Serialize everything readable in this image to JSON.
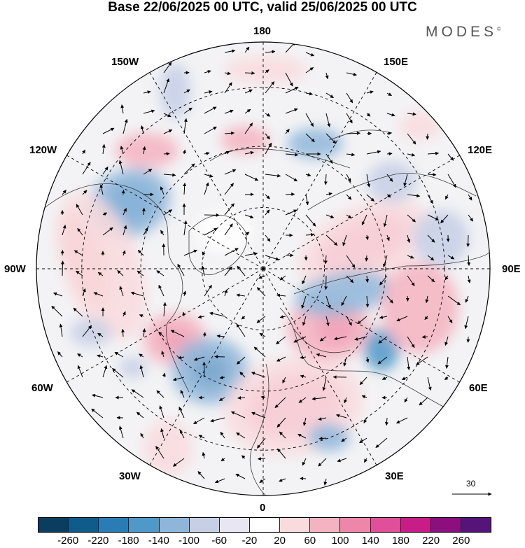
{
  "title": "Base 22/06/2025 00 UTC, valid 25/06/2025 00 UTC",
  "brand": "MODES",
  "brand_mark": "©",
  "longitude_labels": {
    "top": "180",
    "bottom": "0",
    "left": "90W",
    "right": "90E",
    "upper_left_1": "150W",
    "upper_left_2": "120W",
    "upper_right_1": "150E",
    "upper_right_2": "120E",
    "lower_left_1": "60W",
    "lower_left_2": "30W",
    "lower_right_1": "60E",
    "lower_right_2": "30E"
  },
  "reference_vector_label": "30",
  "colorbar": {
    "colors": [
      "#0b3e5e",
      "#0f5b8a",
      "#2a7cb4",
      "#4f98c8",
      "#8fb6da",
      "#c6cfe6",
      "#e7e6f2",
      "#ffffff",
      "#f9dadd",
      "#f4b3c0",
      "#ee86aa",
      "#e0509a",
      "#c81c87",
      "#8c0f80",
      "#56147b"
    ],
    "labels": [
      "-260",
      "-220",
      "-180",
      "-140",
      "-100",
      "-60",
      "-20",
      "20",
      "60",
      "100",
      "140",
      "180",
      "220",
      "260"
    ]
  },
  "map_data": {
    "projection": "north polar stereographic",
    "field": "anomaly",
    "vectors": "wind arrows"
  }
}
